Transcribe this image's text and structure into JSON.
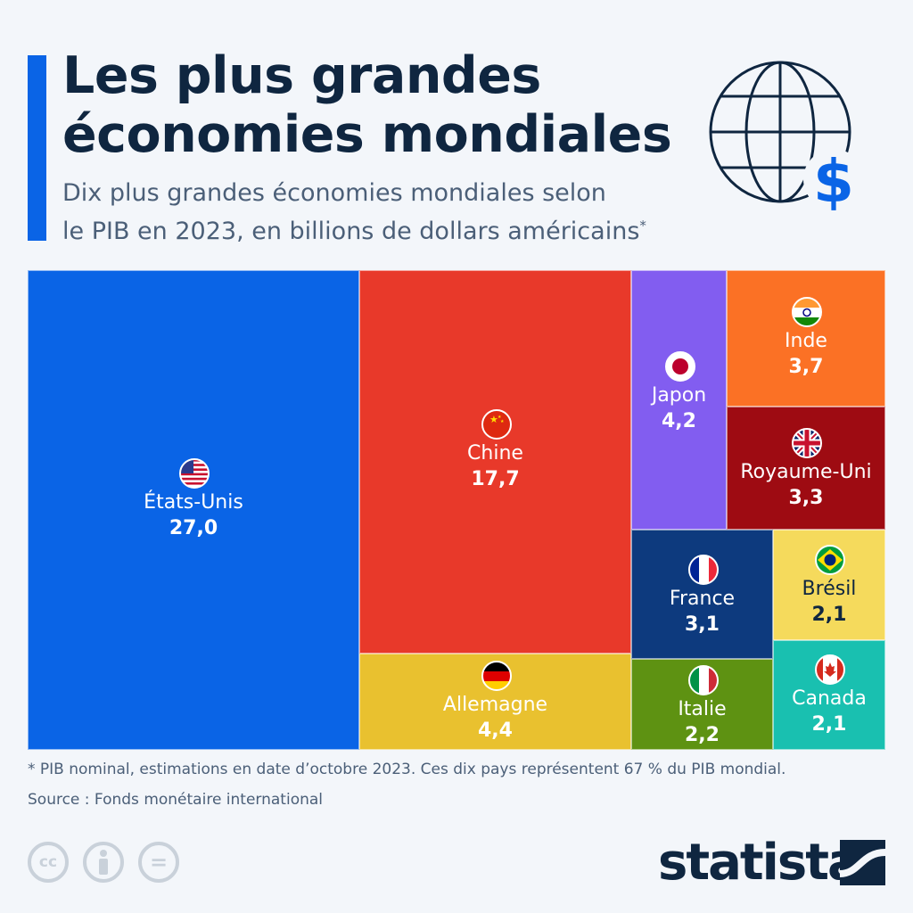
{
  "header": {
    "title_line1": "Les plus grandes",
    "title_line2": "économies mondiales",
    "subtitle_line1": "Dix plus grandes économies mondiales selon",
    "subtitle_line2": "le PIB en 2023, en billions de dollars américains",
    "subtitle_mark": "*",
    "icon": "globe-dollar-icon"
  },
  "chart_data": {
    "type": "treemap",
    "unit": "billions de dollars américains",
    "items": [
      {
        "name": "États-Unis",
        "value": 27.0,
        "label": "27,0",
        "color": "#0a64e6",
        "flag": "us"
      },
      {
        "name": "Chine",
        "value": 17.7,
        "label": "17,7",
        "color": "#e8392a",
        "flag": "cn"
      },
      {
        "name": "Allemagne",
        "value": 4.4,
        "label": "4,4",
        "color": "#e9c12f",
        "flag": "de"
      },
      {
        "name": "Japon",
        "value": 4.2,
        "label": "4,2",
        "color": "#825df0",
        "flag": "jp"
      },
      {
        "name": "Inde",
        "value": 3.7,
        "label": "3,7",
        "color": "#fb7125",
        "flag": "in"
      },
      {
        "name": "Royaume-Uni",
        "value": 3.3,
        "label": "3,3",
        "color": "#9e0b12",
        "flag": "gb"
      },
      {
        "name": "France",
        "value": 3.1,
        "label": "3,1",
        "color": "#0d3a7e",
        "flag": "fr"
      },
      {
        "name": "Brésil",
        "value": 2.1,
        "label": "2,1",
        "color": "#f5da5c",
        "flag": "br"
      },
      {
        "name": "Italie",
        "value": 2.2,
        "label": "2,2",
        "color": "#5e9212",
        "flag": "it"
      },
      {
        "name": "Canada",
        "value": 2.1,
        "label": "2,1",
        "color": "#19c0b0",
        "flag": "ca"
      }
    ]
  },
  "footer": {
    "note": "* PIB nominal, estimations en date d’octobre 2023. Ces dix pays représentent 67 % du PIB mondial.",
    "source": "Source : Fonds monétaire international",
    "license_icons": [
      "cc-icon",
      "attribution-icon",
      "no-derivatives-icon"
    ],
    "cc_text": "cc",
    "nd_text": "=",
    "logo": "statista"
  }
}
